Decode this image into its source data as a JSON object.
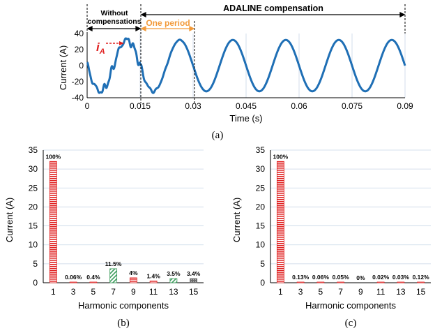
{
  "chart_data": [
    {
      "type": "line",
      "caption": "(a)",
      "xlabel": "Time (s)",
      "ylabel": "Current (A)",
      "xlim": [
        0,
        0.09
      ],
      "ylim": [
        -40,
        40
      ],
      "xticks": [
        "0",
        "0.015",
        "0.03",
        "0.045",
        "0.06",
        "0.075",
        "0.09"
      ],
      "yticks": [
        "-40",
        "-20",
        "0",
        "20",
        "40"
      ],
      "grid": "vertical",
      "annotations": {
        "without": [
          "Without",
          "compensations"
        ],
        "adaline": "ADALINE compensation",
        "period": "One period",
        "signal": "i",
        "signal_sub": "A"
      },
      "series": [
        {
          "name": "iA",
          "color": "#1f6fb5",
          "fundamental_amplitude": 32,
          "period_s": 0.015,
          "compensation_start_s": 0.015
        }
      ]
    },
    {
      "type": "bar",
      "caption": "(b)",
      "xlabel": "Harmonic components",
      "ylabel": "Current (A)",
      "ylim": [
        0,
        35
      ],
      "yticks": [
        "0",
        "5",
        "10",
        "15",
        "20",
        "25",
        "30",
        "35"
      ],
      "categories": [
        "1",
        "3",
        "5",
        "7",
        "9",
        "11",
        "13",
        "15"
      ],
      "values": [
        32,
        0.02,
        0.13,
        3.7,
        1.3,
        0.45,
        1.1,
        1.1
      ],
      "labels": [
        "100%",
        "0.06%",
        "0.4%",
        "11.5%",
        "4%",
        "1.4%",
        "3.5%",
        "3.4%"
      ]
    },
    {
      "type": "bar",
      "caption": "(c)",
      "xlabel": "Harmonic components",
      "ylabel": "Current (A)",
      "ylim": [
        0,
        35
      ],
      "yticks": [
        "0",
        "5",
        "10",
        "15",
        "20",
        "25",
        "30",
        "35"
      ],
      "categories": [
        "1",
        "3",
        "5",
        "7",
        "9",
        "11",
        "13",
        "15"
      ],
      "values": [
        32,
        0.04,
        0.02,
        0.016,
        0,
        0.006,
        0.01,
        0.04
      ],
      "labels": [
        "100%",
        "0.13%",
        "0.06%",
        "0.05%",
        "0%",
        "0.02%",
        "0.03%",
        "0.12%"
      ]
    }
  ],
  "colors": {
    "line": "#1f6fb5",
    "red": "#e02020",
    "green": "#3a9a5a",
    "gray": "#6d6d6d",
    "orange": "#f29a3a",
    "grid": "#c8d6e6"
  }
}
